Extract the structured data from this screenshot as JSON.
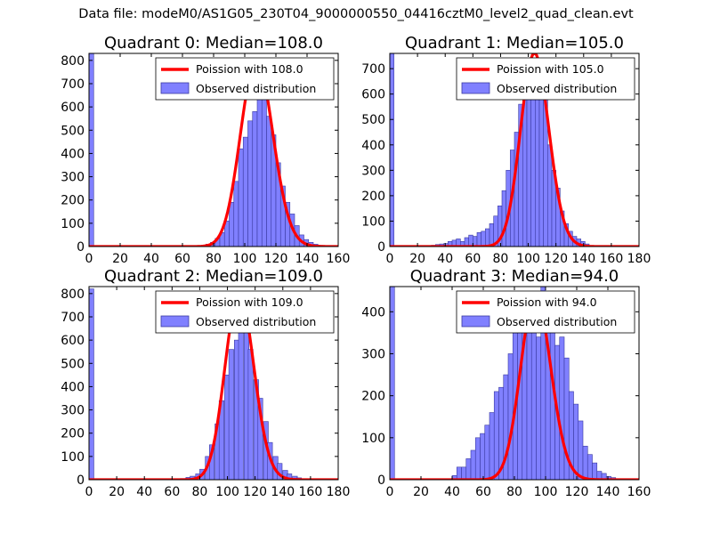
{
  "suptitle": "Data file: modeM0/AS1G05_230T04_9000000550_04416cztM0_level2_quad_clean.evt",
  "colors": {
    "bar_fill": "#8080ff",
    "bar_edge": "#3a3aa0",
    "line": "#ff0000"
  },
  "chart_data": [
    {
      "type": "bar",
      "title": "Quadrant 0: Median=108.0",
      "xlim": [
        0,
        160
      ],
      "ylim": [
        0,
        830
      ],
      "xticks": [
        0,
        20,
        40,
        60,
        80,
        100,
        120,
        140,
        160
      ],
      "yticks": [
        0,
        100,
        200,
        300,
        400,
        500,
        600,
        700,
        800
      ],
      "bin_width": 3,
      "bins": [
        [
          0,
          830
        ],
        [
          75,
          10
        ],
        [
          78,
          18
        ],
        [
          81,
          35
        ],
        [
          84,
          60
        ],
        [
          87,
          110
        ],
        [
          90,
          190
        ],
        [
          93,
          280
        ],
        [
          96,
          420
        ],
        [
          99,
          470
        ],
        [
          102,
          540
        ],
        [
          105,
          580
        ],
        [
          108,
          760
        ],
        [
          111,
          640
        ],
        [
          114,
          560
        ],
        [
          117,
          480
        ],
        [
          120,
          360
        ],
        [
          123,
          260
        ],
        [
          126,
          190
        ],
        [
          129,
          140
        ],
        [
          132,
          90
        ],
        [
          135,
          50
        ],
        [
          138,
          30
        ],
        [
          141,
          18
        ],
        [
          144,
          10
        ],
        [
          147,
          5
        ]
      ],
      "series": [
        {
          "name": "Poission with 108.0",
          "kind": "poisson",
          "mean": 108.0,
          "peak": 800
        },
        {
          "name": "Observed distribution",
          "kind": "hist"
        }
      ]
    },
    {
      "type": "bar",
      "title": "Quadrant 1: Median=105.0",
      "xlim": [
        0,
        180
      ],
      "ylim": [
        0,
        760
      ],
      "xticks": [
        0,
        20,
        40,
        60,
        80,
        100,
        120,
        140,
        160,
        180
      ],
      "yticks": [
        0,
        100,
        200,
        300,
        400,
        500,
        600,
        700
      ],
      "bin_width": 3,
      "bins": [
        [
          0,
          760
        ],
        [
          30,
          5
        ],
        [
          33,
          8
        ],
        [
          36,
          10
        ],
        [
          39,
          12
        ],
        [
          42,
          20
        ],
        [
          45,
          25
        ],
        [
          48,
          30
        ],
        [
          51,
          20
        ],
        [
          54,
          35
        ],
        [
          57,
          45
        ],
        [
          60,
          40
        ],
        [
          63,
          55
        ],
        [
          66,
          60
        ],
        [
          69,
          70
        ],
        [
          72,
          90
        ],
        [
          75,
          120
        ],
        [
          78,
          160
        ],
        [
          81,
          220
        ],
        [
          84,
          300
        ],
        [
          87,
          380
        ],
        [
          90,
          450
        ],
        [
          93,
          560
        ],
        [
          96,
          680
        ],
        [
          99,
          620
        ],
        [
          102,
          680
        ],
        [
          105,
          740
        ],
        [
          108,
          640
        ],
        [
          111,
          600
        ],
        [
          114,
          400
        ],
        [
          117,
          300
        ],
        [
          120,
          230
        ],
        [
          123,
          140
        ],
        [
          126,
          90
        ],
        [
          129,
          60
        ],
        [
          132,
          40
        ],
        [
          135,
          30
        ],
        [
          138,
          20
        ],
        [
          141,
          10
        ]
      ],
      "series": [
        {
          "name": "Poission with 105.0",
          "kind": "poisson",
          "mean": 105.0,
          "peak": 760
        },
        {
          "name": "Observed distribution",
          "kind": "hist"
        }
      ]
    },
    {
      "type": "bar",
      "title": "Quadrant 2: Median=109.0",
      "xlim": [
        0,
        180
      ],
      "ylim": [
        0,
        830
      ],
      "xticks": [
        0,
        20,
        40,
        60,
        80,
        100,
        120,
        140,
        160,
        180
      ],
      "yticks": [
        0,
        100,
        200,
        300,
        400,
        500,
        600,
        700,
        800
      ],
      "bin_width": 3.5,
      "bins": [
        [
          0,
          820
        ],
        [
          66,
          5
        ],
        [
          70,
          10
        ],
        [
          73,
          15
        ],
        [
          77,
          25
        ],
        [
          80,
          45
        ],
        [
          84,
          100
        ],
        [
          87,
          150
        ],
        [
          91,
          240
        ],
        [
          94,
          340
        ],
        [
          98,
          450
        ],
        [
          101,
          560
        ],
        [
          105,
          600
        ],
        [
          108,
          750
        ],
        [
          112,
          640
        ],
        [
          115,
          560
        ],
        [
          119,
          430
        ],
        [
          122,
          350
        ],
        [
          126,
          250
        ],
        [
          129,
          160
        ],
        [
          133,
          100
        ],
        [
          136,
          70
        ],
        [
          140,
          40
        ],
        [
          143,
          25
        ],
        [
          147,
          15
        ],
        [
          150,
          8
        ]
      ],
      "series": [
        {
          "name": "Poission with 109.0",
          "kind": "poisson",
          "mean": 109.0,
          "peak": 800
        },
        {
          "name": "Observed distribution",
          "kind": "hist"
        }
      ]
    },
    {
      "type": "bar",
      "title": "Quadrant 3: Median=94.0",
      "xlim": [
        0,
        160
      ],
      "ylim": [
        0,
        460
      ],
      "xticks": [
        0,
        20,
        40,
        60,
        80,
        100,
        120,
        140,
        160
      ],
      "yticks": [
        0,
        100,
        200,
        300,
        400
      ],
      "bin_width": 3,
      "bins": [
        [
          0,
          460
        ],
        [
          40,
          10
        ],
        [
          43,
          30
        ],
        [
          46,
          30
        ],
        [
          49,
          50
        ],
        [
          52,
          70
        ],
        [
          55,
          100
        ],
        [
          58,
          110
        ],
        [
          61,
          130
        ],
        [
          64,
          160
        ],
        [
          67,
          210
        ],
        [
          70,
          220
        ],
        [
          73,
          250
        ],
        [
          76,
          300
        ],
        [
          79,
          350
        ],
        [
          82,
          370
        ],
        [
          85,
          380
        ],
        [
          88,
          410
        ],
        [
          91,
          360
        ],
        [
          94,
          340
        ],
        [
          97,
          460
        ],
        [
          100,
          400
        ],
        [
          103,
          390
        ],
        [
          106,
          320
        ],
        [
          109,
          340
        ],
        [
          112,
          290
        ],
        [
          115,
          210
        ],
        [
          118,
          180
        ],
        [
          121,
          140
        ],
        [
          124,
          80
        ],
        [
          127,
          60
        ],
        [
          130,
          40
        ],
        [
          133,
          20
        ],
        [
          136,
          15
        ],
        [
          139,
          8
        ],
        [
          142,
          5
        ]
      ],
      "series": [
        {
          "name": "Poission with 94.0",
          "kind": "poisson",
          "mean": 94.0,
          "peak": 440
        },
        {
          "name": "Observed distribution",
          "kind": "hist"
        }
      ]
    }
  ]
}
